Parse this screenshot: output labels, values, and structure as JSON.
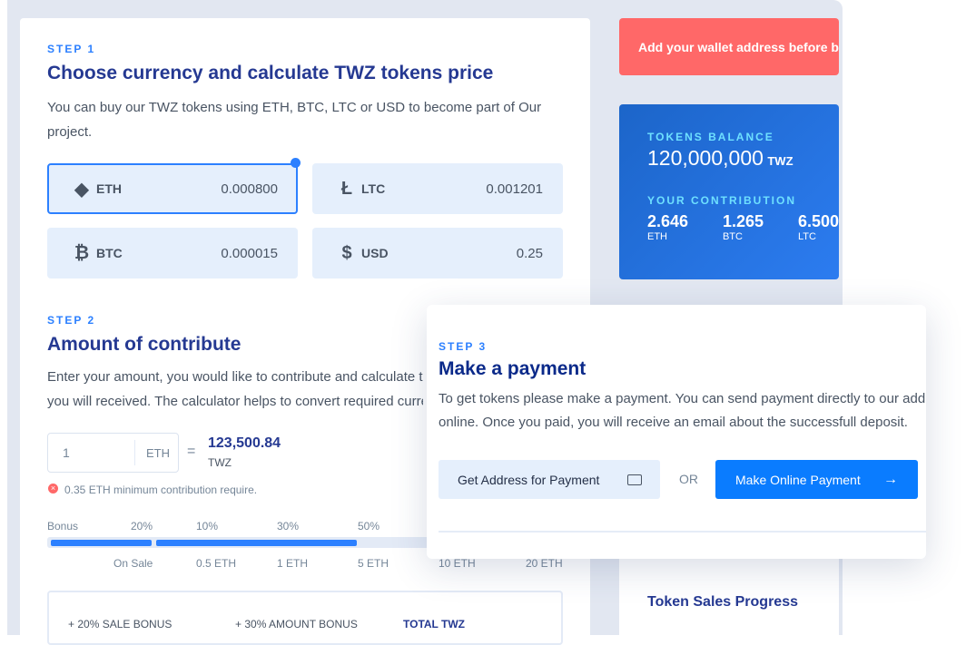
{
  "step1": {
    "step": "STEP 1",
    "title": "Choose currency and calculate TWZ tokens price",
    "text": "You can buy our TWZ tokens using ETH, BTC, LTC or USD to become part of Our project.",
    "currencies": [
      {
        "name": "ETH",
        "value": "0.000800",
        "icon": "ethereum-icon",
        "selected": true
      },
      {
        "name": "LTC",
        "value": "0.001201",
        "icon": "litecoin-icon"
      },
      {
        "name": "BTC",
        "value": "0.000015",
        "icon": "bitcoin-icon"
      },
      {
        "name": "USD",
        "value": "0.25",
        "icon": "dollar-icon"
      }
    ]
  },
  "step2": {
    "step": "STEP 2",
    "title": "Amount of contribute",
    "text1": "Enter your amount, you would like to contribute and calculate the amount of token",
    "text2": "you will received. The calculator helps to convert required currency to tokens.",
    "amount": "1",
    "unit": "ETH",
    "equals": "=",
    "result": "123,500.84",
    "result_unit": "TWZ",
    "error": "0.35 ETH minimum contribution require.",
    "bonus_label": "Bonus",
    "bonus": [
      "20%",
      "10%",
      "30%",
      "50%"
    ],
    "progress_percent": 78,
    "steps": [
      "On Sale",
      "0.5 ETH",
      "1 ETH",
      "5 ETH",
      "10 ETH",
      "20 ETH"
    ],
    "summary": [
      "+ 20% SALE BONUS",
      "+ 30% AMOUNT BONUS",
      "TOTAL TWZ"
    ]
  },
  "alert": "Add your wallet address before buying",
  "balance": {
    "label": "TOKENS BALANCE",
    "value": "120,000,000",
    "unit": "TWZ",
    "contrib_label": "YOUR CONTRIBUTION",
    "items": [
      {
        "v": "2.646",
        "c": "ETH"
      },
      {
        "v": "1.265",
        "c": "BTC"
      },
      {
        "v": "6.500",
        "c": "LTC"
      }
    ]
  },
  "step3": {
    "step": "STEP 3",
    "title": "Make a payment",
    "text1": "To get tokens please make a payment. You can send payment directly to our address or make it",
    "text2": "online. Once you paid, you will receive an email about the successfull deposit.",
    "get_address": "Get Address for Payment",
    "or": "OR",
    "online": "Make Online Payment"
  },
  "sales_title": "Token Sales Progress",
  "colors": {
    "accent": "#2c80ff",
    "alert": "#ff6868",
    "title": "#253992"
  }
}
